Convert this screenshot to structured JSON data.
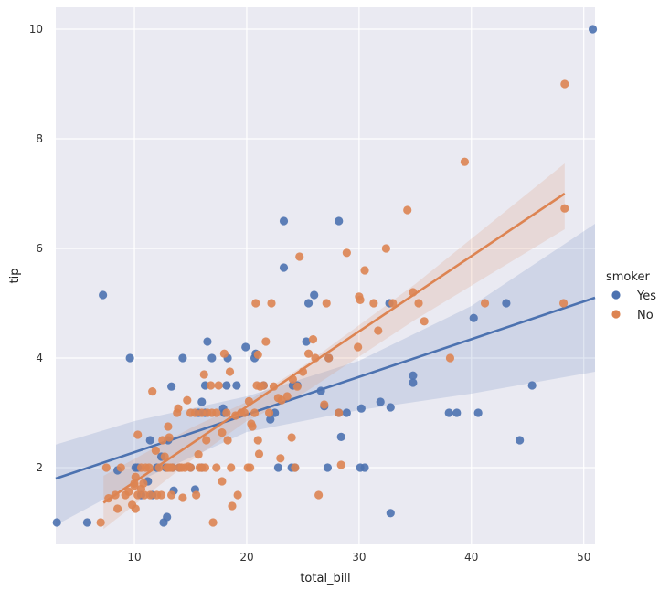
{
  "chart_data": {
    "type": "scatter",
    "xlabel": "total_bill",
    "ylabel": "tip",
    "xlim": [
      3,
      51
    ],
    "ylim": [
      0.6,
      10.4
    ],
    "xticks": [
      10,
      20,
      30,
      40,
      50
    ],
    "yticks": [
      2,
      4,
      6,
      8,
      10
    ],
    "grid": true,
    "legend": {
      "title": "smoker",
      "placement": "right"
    },
    "colors": {
      "Yes": "#4c72b0",
      "No": "#dd8452",
      "background": "#eaeaf2",
      "grid": "#ffffff"
    },
    "series": [
      {
        "name": "Yes",
        "regression": {
          "x": [
            3,
            51
          ],
          "y": [
            1.8,
            5.1
          ]
        },
        "band": {
          "x": [
            3,
            10,
            20,
            30,
            40,
            51
          ],
          "upper": [
            2.42,
            2.85,
            3.3,
            3.95,
            4.95,
            6.45
          ],
          "lower": [
            0.95,
            1.72,
            2.65,
            3.05,
            3.35,
            3.75
          ]
        },
        "points": [
          [
            3.1,
            1.0
          ],
          [
            5.8,
            1.0
          ],
          [
            7.2,
            5.15
          ],
          [
            8.5,
            1.95
          ],
          [
            9.6,
            4.0
          ],
          [
            10.1,
            2.0
          ],
          [
            10.3,
            2.0
          ],
          [
            10.6,
            1.5
          ],
          [
            11.2,
            1.75
          ],
          [
            11.4,
            2.5
          ],
          [
            11.6,
            1.5
          ],
          [
            12.0,
            2.0
          ],
          [
            12.4,
            2.2
          ],
          [
            12.6,
            1.0
          ],
          [
            12.8,
            2.0
          ],
          [
            12.9,
            1.1
          ],
          [
            13.0,
            2.5
          ],
          [
            13.3,
            3.48
          ],
          [
            13.4,
            2.0
          ],
          [
            13.5,
            1.58
          ],
          [
            14.0,
            2.0
          ],
          [
            14.3,
            4.0
          ],
          [
            15.0,
            2.0
          ],
          [
            15.4,
            1.6
          ],
          [
            15.7,
            3.0
          ],
          [
            16.0,
            2.0
          ],
          [
            16.0,
            3.2
          ],
          [
            16.3,
            3.0
          ],
          [
            16.3,
            3.5
          ],
          [
            16.5,
            4.3
          ],
          [
            16.9,
            4.0
          ],
          [
            17.9,
            3.08
          ],
          [
            18.0,
            3.0
          ],
          [
            18.2,
            3.5
          ],
          [
            18.3,
            4.0
          ],
          [
            19.1,
            3.5
          ],
          [
            19.9,
            4.2
          ],
          [
            20.7,
            4.0
          ],
          [
            20.8,
            4.08
          ],
          [
            21.5,
            3.5
          ],
          [
            22.1,
            2.88
          ],
          [
            22.5,
            3.0
          ],
          [
            22.8,
            2.0
          ],
          [
            23.3,
            6.5
          ],
          [
            23.3,
            5.65
          ],
          [
            24.0,
            2.0
          ],
          [
            24.1,
            3.5
          ],
          [
            24.3,
            2.0
          ],
          [
            24.5,
            3.5
          ],
          [
            25.3,
            4.3
          ],
          [
            25.5,
            5.0
          ],
          [
            26.0,
            5.15
          ],
          [
            26.6,
            3.4
          ],
          [
            26.9,
            3.12
          ],
          [
            27.2,
            2.0
          ],
          [
            27.3,
            4.0
          ],
          [
            28.2,
            6.5
          ],
          [
            28.2,
            3.0
          ],
          [
            28.4,
            2.56
          ],
          [
            28.9,
            3.0
          ],
          [
            30.1,
            2.0
          ],
          [
            30.2,
            3.08
          ],
          [
            30.5,
            2.0
          ],
          [
            31.9,
            3.2
          ],
          [
            32.7,
            5.0
          ],
          [
            32.8,
            3.1
          ],
          [
            32.8,
            1.17
          ],
          [
            34.8,
            3.68
          ],
          [
            34.8,
            3.55
          ],
          [
            38.0,
            3.0
          ],
          [
            38.7,
            3.0
          ],
          [
            40.2,
            4.73
          ],
          [
            40.6,
            3.0
          ],
          [
            43.1,
            5.0
          ],
          [
            44.3,
            2.5
          ],
          [
            45.4,
            3.5
          ],
          [
            50.8,
            10.0
          ]
        ]
      },
      {
        "name": "No",
        "regression": {
          "x": [
            7.25,
            48.3
          ],
          "y": [
            1.36,
            7.0
          ]
        },
        "band": {
          "x": [
            7.25,
            15,
            20,
            25,
            35,
            48.3
          ],
          "upper": [
            1.85,
            2.72,
            3.2,
            3.85,
            5.35,
            7.55
          ],
          "lower": [
            0.88,
            2.12,
            2.85,
            3.35,
            4.7,
            6.35
          ]
        },
        "points": [
          [
            7.0,
            1.0
          ],
          [
            7.5,
            2.0
          ],
          [
            7.7,
            1.44
          ],
          [
            8.3,
            1.5
          ],
          [
            8.5,
            1.25
          ],
          [
            8.8,
            2.0
          ],
          [
            9.2,
            1.5
          ],
          [
            9.5,
            1.56
          ],
          [
            9.8,
            1.32
          ],
          [
            10.0,
            1.71
          ],
          [
            10.0,
            1.67
          ],
          [
            10.1,
            1.83
          ],
          [
            10.1,
            1.25
          ],
          [
            10.3,
            2.6
          ],
          [
            10.3,
            1.5
          ],
          [
            10.6,
            1.61
          ],
          [
            10.6,
            2.0
          ],
          [
            10.8,
            1.71
          ],
          [
            10.9,
            1.5
          ],
          [
            11.0,
            2.0
          ],
          [
            11.3,
            2.0
          ],
          [
            11.4,
            1.5
          ],
          [
            11.6,
            3.39
          ],
          [
            11.9,
            2.31
          ],
          [
            12.0,
            1.5
          ],
          [
            12.2,
            2.0
          ],
          [
            12.4,
            1.5
          ],
          [
            12.5,
            2.5
          ],
          [
            12.7,
            2.2
          ],
          [
            12.9,
            2.0
          ],
          [
            13.0,
            2.0
          ],
          [
            13.0,
            2.75
          ],
          [
            13.1,
            2.55
          ],
          [
            13.2,
            2.0
          ],
          [
            13.3,
            1.5
          ],
          [
            13.4,
            2.0
          ],
          [
            13.8,
            3.0
          ],
          [
            13.9,
            3.08
          ],
          [
            14.0,
            2.0
          ],
          [
            14.2,
            2.0
          ],
          [
            14.3,
            1.45
          ],
          [
            14.5,
            2.0
          ],
          [
            14.7,
            3.23
          ],
          [
            14.8,
            2.02
          ],
          [
            15.0,
            3.0
          ],
          [
            15.0,
            2.0
          ],
          [
            15.4,
            3.0
          ],
          [
            15.5,
            1.5
          ],
          [
            15.7,
            2.24
          ],
          [
            15.8,
            2.0
          ],
          [
            16.0,
            3.0
          ],
          [
            16.0,
            2.0
          ],
          [
            16.2,
            3.7
          ],
          [
            16.3,
            2.0
          ],
          [
            16.4,
            2.5
          ],
          [
            16.5,
            3.0
          ],
          [
            16.8,
            3.5
          ],
          [
            16.9,
            3.0
          ],
          [
            17.0,
            1.0
          ],
          [
            17.3,
            3.0
          ],
          [
            17.3,
            2.0
          ],
          [
            17.5,
            3.5
          ],
          [
            17.8,
            2.64
          ],
          [
            17.8,
            1.75
          ],
          [
            18.0,
            4.08
          ],
          [
            18.2,
            3.0
          ],
          [
            18.3,
            2.5
          ],
          [
            18.5,
            3.75
          ],
          [
            18.6,
            2.0
          ],
          [
            18.7,
            1.3
          ],
          [
            19.0,
            2.95
          ],
          [
            19.2,
            1.5
          ],
          [
            19.5,
            3.0
          ],
          [
            19.8,
            3.0
          ],
          [
            20.1,
            2.0
          ],
          [
            20.2,
            3.21
          ],
          [
            20.3,
            2.0
          ],
          [
            20.4,
            2.8
          ],
          [
            20.5,
            2.75
          ],
          [
            20.7,
            3.0
          ],
          [
            20.8,
            5.0
          ],
          [
            20.9,
            3.5
          ],
          [
            21.0,
            2.5
          ],
          [
            21.0,
            4.06
          ],
          [
            21.1,
            2.25
          ],
          [
            21.2,
            3.48
          ],
          [
            21.5,
            3.5
          ],
          [
            21.7,
            4.3
          ],
          [
            22.0,
            3.0
          ],
          [
            22.2,
            5.0
          ],
          [
            22.4,
            3.48
          ],
          [
            22.8,
            3.27
          ],
          [
            23.0,
            2.17
          ],
          [
            23.1,
            3.23
          ],
          [
            23.6,
            3.3
          ],
          [
            24.0,
            2.55
          ],
          [
            24.1,
            3.61
          ],
          [
            24.3,
            2.0
          ],
          [
            24.5,
            3.48
          ],
          [
            24.7,
            5.85
          ],
          [
            25.0,
            3.75
          ],
          [
            25.5,
            4.08
          ],
          [
            25.9,
            4.34
          ],
          [
            26.1,
            4.0
          ],
          [
            26.4,
            1.5
          ],
          [
            26.9,
            3.15
          ],
          [
            27.1,
            5.0
          ],
          [
            27.3,
            4.0
          ],
          [
            28.2,
            3.0
          ],
          [
            28.4,
            2.05
          ],
          [
            28.9,
            5.92
          ],
          [
            29.9,
            4.2
          ],
          [
            30.0,
            5.12
          ],
          [
            30.1,
            5.06
          ],
          [
            30.5,
            5.6
          ],
          [
            31.3,
            5.0
          ],
          [
            31.7,
            4.5
          ],
          [
            32.4,
            6.0
          ],
          [
            33.0,
            5.0
          ],
          [
            34.3,
            6.7
          ],
          [
            34.8,
            5.2
          ],
          [
            35.3,
            5.0
          ],
          [
            35.8,
            4.67
          ],
          [
            38.1,
            4.0
          ],
          [
            39.4,
            7.58
          ],
          [
            41.2,
            5.0
          ],
          [
            48.2,
            5.0
          ],
          [
            48.3,
            6.73
          ],
          [
            48.3,
            9.0
          ]
        ]
      }
    ]
  }
}
